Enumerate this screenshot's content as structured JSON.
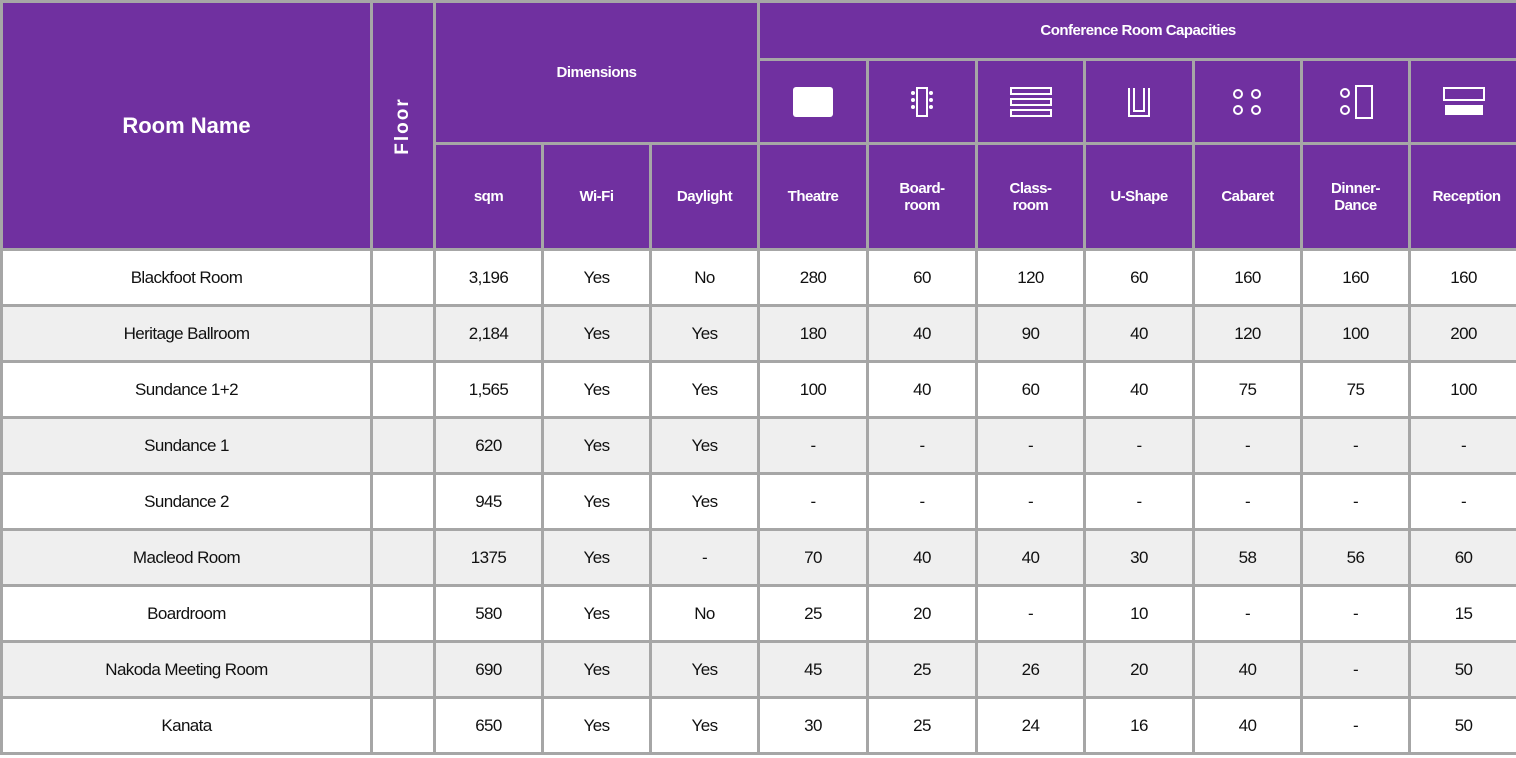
{
  "header": {
    "room_name": "Room Name",
    "floor": "Floor",
    "dimensions": "Dimensions",
    "capacities": "Conference Room Capacities",
    "columns": [
      "sqm",
      "Wi-Fi",
      "Daylight",
      "Theatre",
      "Board-room",
      "Class-room",
      "U-Shape",
      "Cabaret",
      "Dinner-Dance",
      "Reception"
    ]
  },
  "table": {
    "rows": [
      [
        "Blackfoot Room",
        "3,196",
        "Yes",
        "No",
        "280",
        "60",
        "120",
        "60",
        "160",
        "160",
        "160"
      ],
      [
        "Heritage Ballroom",
        "2,184",
        "Yes",
        "Yes",
        "180",
        "40",
        "90",
        "40",
        "120",
        "100",
        "200"
      ],
      [
        "Sundance 1+2",
        "1,565",
        "Yes",
        "Yes",
        "100",
        "40",
        "60",
        "40",
        "75",
        "75",
        "100"
      ],
      [
        "Sundance 1",
        "620",
        "Yes",
        "Yes",
        "-",
        "-",
        "-",
        "-",
        "-",
        "-",
        "-"
      ],
      [
        "Sundance 2",
        "945",
        "Yes",
        "Yes",
        "-",
        "-",
        "-",
        "-",
        "-",
        "-",
        "-"
      ],
      [
        "Macleod Room",
        "1375",
        "Yes",
        "-",
        "70",
        "40",
        "40",
        "30",
        "58",
        "56",
        "60"
      ],
      [
        "Boardroom",
        "580",
        "Yes",
        "No",
        "25",
        "20",
        "-",
        "10",
        "-",
        "-",
        "15"
      ],
      [
        "Nakoda Meeting Room",
        "690",
        "Yes",
        "Yes",
        "45",
        "25",
        "26",
        "20",
        "40",
        "-",
        "50"
      ],
      [
        "Kanata",
        "650",
        "Yes",
        "Yes",
        "30",
        "25",
        "24",
        "16",
        "40",
        "-",
        "50"
      ]
    ]
  }
}
